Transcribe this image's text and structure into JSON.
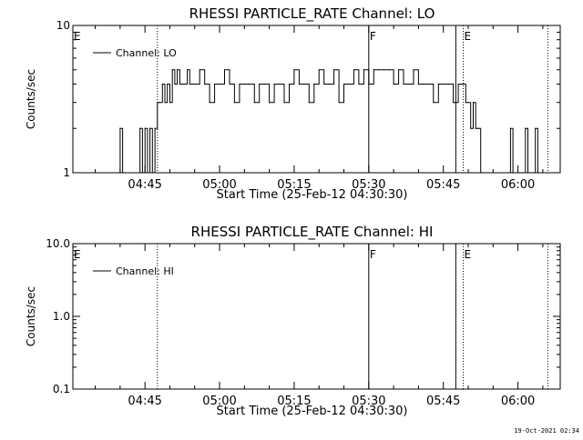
{
  "chart_data": [
    {
      "type": "line",
      "title": "RHESSI PARTICLE_RATE Channel: LO",
      "xlabel": "Start Time (25-Feb-12 04:30:30)",
      "ylabel": "Counts/sec",
      "xlim": [
        "04:30:30",
        "06:08:30"
      ],
      "yscale": "log",
      "ylim": [
        1,
        10
      ],
      "yticks": [
        "1",
        "10"
      ],
      "xticks": [
        "04:45",
        "05:00",
        "05:15",
        "05:30",
        "05:45",
        "06:00"
      ],
      "legend": {
        "position": "top-left",
        "entries": [
          "Channel: LO"
        ]
      },
      "markers": [
        {
          "label": "E",
          "time": "04:30:30",
          "style": "solid"
        },
        {
          "label": "",
          "time": "04:47:30",
          "style": "dotted"
        },
        {
          "label": "F",
          "time": "05:30:00",
          "style": "solid"
        },
        {
          "label": "",
          "time": "05:47:30",
          "style": "solid"
        },
        {
          "label": "E",
          "time": "05:49:00",
          "style": "dotted"
        },
        {
          "label": "",
          "time": "06:06:00",
          "style": "dotted"
        }
      ],
      "series": [
        {
          "name": "Channel: LO",
          "x": [
            "04:39:30",
            "04:40:00",
            "04:40:30",
            "04:41:00",
            "04:44:00",
            "04:44:30",
            "04:45:00",
            "04:45:30",
            "04:46:00",
            "04:46:30",
            "04:47:00",
            "04:47:30",
            "04:48:00",
            "04:48:30",
            "04:49:00",
            "04:49:30",
            "04:50:00",
            "04:50:30",
            "04:51:00",
            "04:51:30",
            "04:52:00",
            "04:52:30",
            "04:53:00",
            "04:53:30",
            "04:54:00",
            "04:55:00",
            "04:56:00",
            "04:57:00",
            "04:58:00",
            "04:59:00",
            "05:00:00",
            "05:01:00",
            "05:02:00",
            "05:03:00",
            "05:04:00",
            "05:05:00",
            "05:06:00",
            "05:07:00",
            "05:08:00",
            "05:09:00",
            "05:10:00",
            "05:11:00",
            "05:12:00",
            "05:13:00",
            "05:14:00",
            "05:15:00",
            "05:16:00",
            "05:17:00",
            "05:18:00",
            "05:19:00",
            "05:20:00",
            "05:21:00",
            "05:22:00",
            "05:23:00",
            "05:24:00",
            "05:25:00",
            "05:26:00",
            "05:27:00",
            "05:28:00",
            "05:29:00",
            "05:30:00",
            "05:31:00",
            "05:32:00",
            "05:33:00",
            "05:34:00",
            "05:35:00",
            "05:36:00",
            "05:37:00",
            "05:38:00",
            "05:39:00",
            "05:40:00",
            "05:41:00",
            "05:42:00",
            "05:43:00",
            "05:44:00",
            "05:45:00",
            "05:46:00",
            "05:47:00",
            "05:48:00",
            "05:49:00",
            "05:49:30",
            "05:50:00",
            "05:50:30",
            "05:51:00",
            "05:51:30",
            "05:52:00",
            "05:52:30",
            "05:53:00",
            "05:58:00",
            "05:58:30",
            "05:59:00",
            "06:01:00",
            "06:01:30",
            "06:02:00",
            "06:03:00",
            "06:03:30",
            "06:04:00"
          ],
          "y": [
            1,
            2,
            1,
            1,
            2,
            1,
            2,
            1,
            2,
            1,
            2,
            3,
            3,
            4,
            3,
            4,
            3,
            5,
            4,
            5,
            4,
            4,
            4,
            5,
            4,
            4,
            5,
            4,
            3,
            4,
            4,
            5,
            4,
            3,
            4,
            4,
            4,
            3,
            4,
            4,
            3,
            4,
            4,
            3,
            4,
            5,
            4,
            4,
            3,
            4,
            5,
            4,
            4,
            5,
            3,
            4,
            4,
            5,
            4,
            5,
            4,
            5,
            5,
            5,
            5,
            4,
            5,
            4,
            4,
            5,
            4,
            4,
            4,
            3,
            4,
            4,
            4,
            3,
            4,
            4,
            3,
            3,
            2,
            3,
            2,
            2,
            1,
            1,
            1,
            2,
            1,
            1,
            2,
            1,
            1,
            2,
            1
          ]
        }
      ]
    },
    {
      "type": "line",
      "title": "RHESSI PARTICLE_RATE Channel: HI",
      "xlabel": "Start Time (25-Feb-12 04:30:30)",
      "ylabel": "Counts/sec",
      "xlim": [
        "04:30:30",
        "06:08:30"
      ],
      "yscale": "log",
      "ylim": [
        0.1,
        10
      ],
      "yticks": [
        "0.1",
        "1.0",
        "10.0"
      ],
      "xticks": [
        "04:45",
        "05:00",
        "05:15",
        "05:30",
        "05:45",
        "06:00"
      ],
      "legend": {
        "position": "top-left",
        "entries": [
          "Channel: HI"
        ]
      },
      "markers": [
        {
          "label": "E",
          "time": "04:30:30",
          "style": "solid"
        },
        {
          "label": "",
          "time": "04:47:30",
          "style": "dotted"
        },
        {
          "label": "F",
          "time": "05:30:00",
          "style": "solid"
        },
        {
          "label": "",
          "time": "05:47:30",
          "style": "solid"
        },
        {
          "label": "E",
          "time": "05:49:00",
          "style": "dotted"
        },
        {
          "label": "",
          "time": "06:06:00",
          "style": "dotted"
        }
      ],
      "series": [
        {
          "name": "Channel: HI",
          "x": [],
          "y": []
        }
      ]
    }
  ],
  "footer": "19-Oct-2021 02:34"
}
